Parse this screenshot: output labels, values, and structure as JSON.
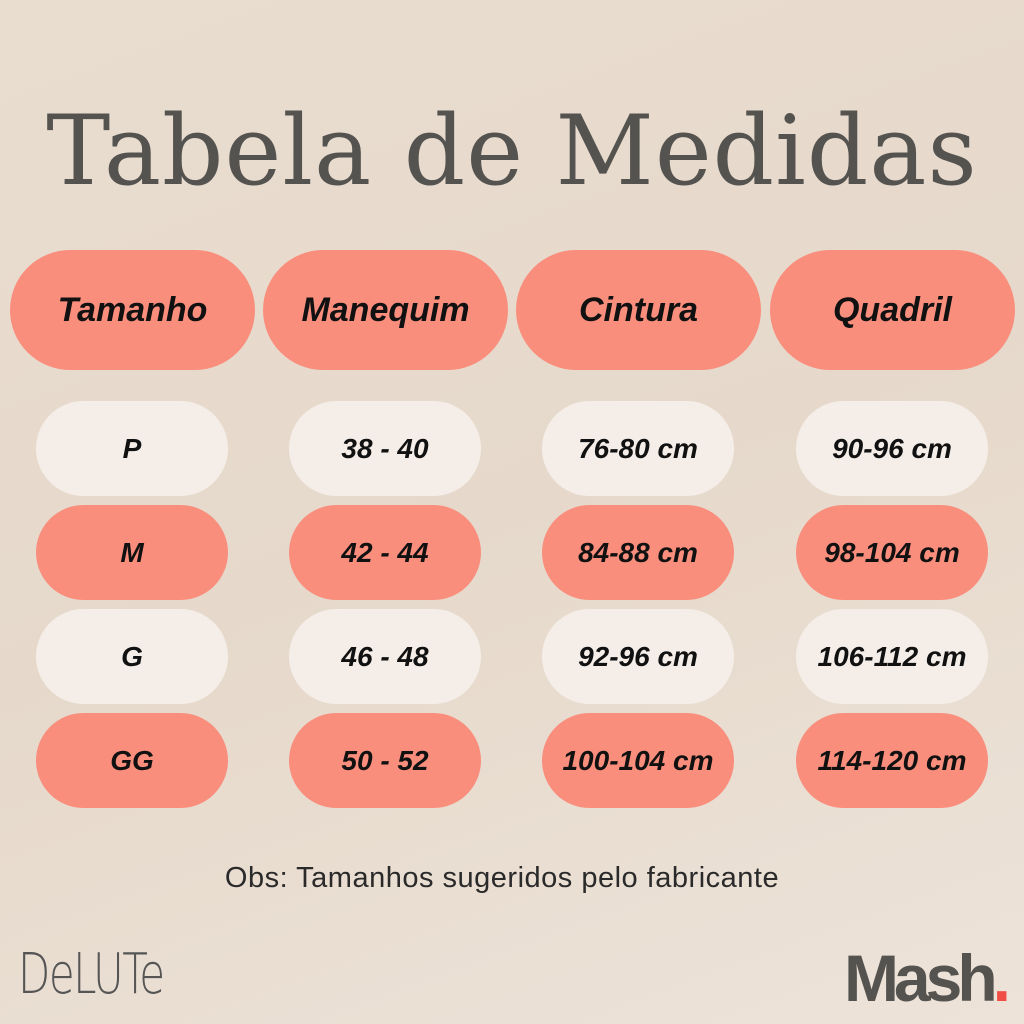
{
  "title": "Tabela de Medidas",
  "headers": [
    "Tamanho",
    "Manequim",
    "Cintura",
    "Quadril"
  ],
  "rows": [
    [
      "P",
      "38 - 40",
      "76-80 cm",
      "90-96 cm"
    ],
    [
      "M",
      "42 - 44",
      "84-88 cm",
      "98-104 cm"
    ],
    [
      "G",
      "46 - 48",
      "92-96 cm",
      "106-112 cm"
    ],
    [
      "GG",
      "50 - 52",
      "100-104 cm",
      "114-120 cm"
    ]
  ],
  "note": "Obs: Tamanhos sugeridos pelo fabricante",
  "logos": {
    "left": "DeLUTe",
    "right": "Mash",
    "right_dot": "."
  },
  "colors": {
    "accent": "#fa8e7d",
    "light": "#f5eee8",
    "background": "#e8dccf",
    "text": "#555350"
  }
}
